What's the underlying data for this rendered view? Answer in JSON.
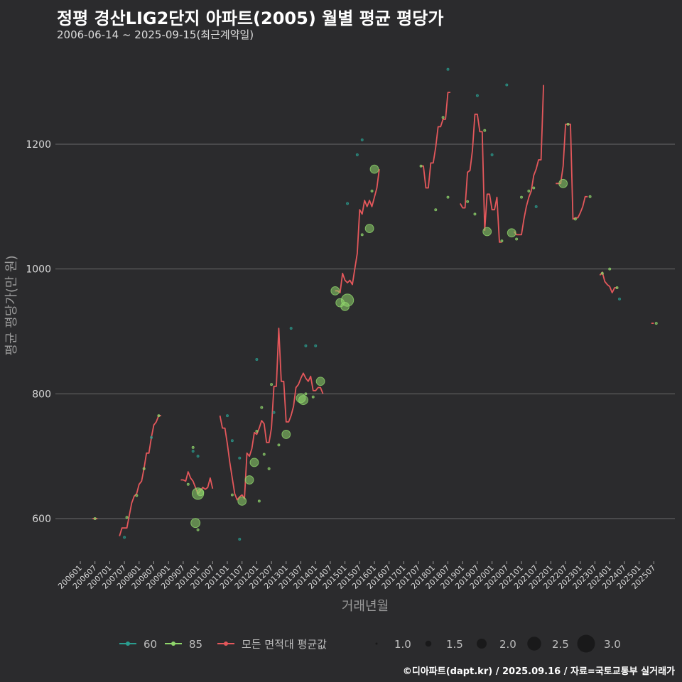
{
  "title": "정평 경산LIG2단지 아파트(2005) 월별 평균 평당가",
  "subtitle": "2006-06-14 ~ 2025-09-15(최근계약일)",
  "credit": "©디아파트(dapt.kr) / 2025.09.16 / 자료=국토교통부 실거래가",
  "colors": {
    "background": "#2b2b2d",
    "grid": "#6a6a6a",
    "series_60": "#2a9d8f",
    "series_85": "#8fd66b",
    "avg_line": "#e4575b"
  },
  "chart_data": {
    "type": "line+scatter",
    "xlabel": "거래년월",
    "ylabel": "평균 평당가(만 원)",
    "ylim": [
      534,
      1340
    ],
    "yticks": [
      600,
      800,
      1000,
      1200
    ],
    "x_start": "2006-01",
    "x_end": "2025-12",
    "xticks": [
      "200601",
      "200607",
      "200701",
      "200707",
      "200801",
      "200807",
      "200901",
      "200907",
      "201001",
      "201007",
      "201101",
      "201107",
      "201201",
      "201207",
      "201301",
      "201307",
      "201401",
      "201407",
      "201501",
      "201507",
      "201601",
      "201607",
      "201701",
      "201707",
      "201801",
      "201807",
      "201901",
      "201907",
      "202001",
      "202007",
      "202101",
      "202107",
      "202201",
      "202207",
      "202301",
      "202307",
      "202401",
      "202407",
      "202501",
      "202507"
    ],
    "legend": {
      "series": [
        {
          "label": "60",
          "color": "#2a9d8f"
        },
        {
          "label": "85",
          "color": "#8fd66b"
        },
        {
          "label": "모든 면적대 평균값",
          "color": "#e4575b"
        }
      ],
      "sizes": [
        {
          "label": "1.0",
          "size": 1.0
        },
        {
          "label": "1.5",
          "size": 1.5
        },
        {
          "label": "2.0",
          "size": 2.0
        },
        {
          "label": "2.5",
          "size": 2.5
        },
        {
          "label": "3.0",
          "size": 3.0
        }
      ]
    },
    "avg_line_segments": [
      [
        [
          "2006-06",
          600
        ],
        [
          "2006-08",
          600
        ]
      ],
      [
        [
          "2007-05",
          572
        ],
        [
          "2007-06",
          585
        ],
        [
          "2007-07",
          585
        ],
        [
          "2007-08",
          585
        ],
        [
          "2007-09",
          605
        ],
        [
          "2007-10",
          625
        ],
        [
          "2007-11",
          636
        ],
        [
          "2007-12",
          640
        ],
        [
          "2008-01",
          655
        ],
        [
          "2008-02",
          660
        ],
        [
          "2008-03",
          680
        ],
        [
          "2008-04",
          705
        ],
        [
          "2008-05",
          705
        ],
        [
          "2008-06",
          730
        ],
        [
          "2008-07",
          750
        ],
        [
          "2008-08",
          755
        ],
        [
          "2008-09",
          765
        ],
        [
          "2008-10",
          765
        ]
      ],
      [
        [
          "2009-06",
          662
        ],
        [
          "2009-07",
          662
        ],
        [
          "2009-08",
          660
        ],
        [
          "2009-09",
          675
        ],
        [
          "2009-10",
          665
        ],
        [
          "2009-11",
          660
        ],
        [
          "2009-12",
          650
        ],
        [
          "2010-01",
          640
        ],
        [
          "2010-02",
          645
        ],
        [
          "2010-03",
          650
        ],
        [
          "2010-04",
          647
        ],
        [
          "2010-05",
          650
        ],
        [
          "2010-06",
          665
        ],
        [
          "2010-07",
          648
        ]
      ],
      [
        [
          "2010-10",
          765
        ],
        [
          "2010-11",
          745
        ],
        [
          "2010-12",
          745
        ],
        [
          "2011-01",
          720
        ],
        [
          "2011-02",
          690
        ],
        [
          "2011-03",
          665
        ],
        [
          "2011-04",
          640
        ],
        [
          "2011-05",
          630
        ],
        [
          "2011-06",
          635
        ],
        [
          "2011-07",
          638
        ],
        [
          "2011-08",
          632
        ],
        [
          "2011-09",
          705
        ],
        [
          "2011-10",
          700
        ],
        [
          "2011-11",
          712
        ],
        [
          "2011-12",
          738
        ],
        [
          "2012-01",
          735
        ],
        [
          "2012-02",
          745
        ],
        [
          "2012-03",
          757
        ],
        [
          "2012-04",
          752
        ],
        [
          "2012-05",
          722
        ],
        [
          "2012-06",
          722
        ],
        [
          "2012-07",
          745
        ],
        [
          "2012-08",
          812
        ],
        [
          "2012-09",
          812
        ],
        [
          "2012-10",
          905
        ],
        [
          "2012-11",
          820
        ],
        [
          "2012-12",
          820
        ],
        [
          "2013-01",
          755
        ],
        [
          "2013-02",
          755
        ],
        [
          "2013-03",
          765
        ],
        [
          "2013-04",
          780
        ],
        [
          "2013-05",
          810
        ],
        [
          "2013-06",
          815
        ],
        [
          "2013-07",
          825
        ],
        [
          "2013-08",
          833
        ],
        [
          "2013-09",
          825
        ],
        [
          "2013-10",
          820
        ],
        [
          "2013-11",
          828
        ],
        [
          "2013-12",
          805
        ],
        [
          "2014-01",
          805
        ],
        [
          "2014-02",
          810
        ],
        [
          "2014-03",
          810
        ],
        [
          "2014-04",
          800
        ]
      ],
      [
        [
          "2014-09",
          965
        ],
        [
          "2014-10",
          965
        ],
        [
          "2014-11",
          962
        ],
        [
          "2014-12",
          993
        ],
        [
          "2015-01",
          982
        ],
        [
          "2015-02",
          978
        ],
        [
          "2015-03",
          982
        ],
        [
          "2015-04",
          975
        ],
        [
          "2015-05",
          1000
        ],
        [
          "2015-06",
          1025
        ],
        [
          "2015-07",
          1095
        ],
        [
          "2015-08",
          1088
        ],
        [
          "2015-09",
          1110
        ],
        [
          "2015-10",
          1100
        ],
        [
          "2015-11",
          1110
        ],
        [
          "2015-12",
          1100
        ],
        [
          "2016-01",
          1115
        ],
        [
          "2016-02",
          1130
        ],
        [
          "2016-03",
          1160
        ]
      ],
      [
        [
          "2017-08",
          1165
        ],
        [
          "2017-09",
          1165
        ],
        [
          "2017-10",
          1130
        ],
        [
          "2017-11",
          1130
        ],
        [
          "2017-12",
          1170
        ],
        [
          "2018-01",
          1170
        ],
        [
          "2018-02",
          1195
        ],
        [
          "2018-03",
          1228
        ],
        [
          "2018-04",
          1228
        ],
        [
          "2018-05",
          1240
        ],
        [
          "2018-06",
          1240
        ],
        [
          "2018-07",
          1283
        ],
        [
          "2018-08",
          1283
        ]
      ],
      [
        [
          "2018-12",
          1105
        ],
        [
          "2018-13",
          1098
        ],
        [
          "2019-02",
          1098
        ],
        [
          "2019-03",
          1155
        ],
        [
          "2019-04",
          1158
        ],
        [
          "2019-05",
          1190
        ],
        [
          "2019-06",
          1248
        ],
        [
          "2019-07",
          1248
        ],
        [
          "2019-08",
          1220
        ],
        [
          "2019-09",
          1220
        ],
        [
          "2019-10",
          1062
        ],
        [
          "2019-11",
          1120
        ],
        [
          "2019-12",
          1120
        ],
        [
          "2020-01",
          1095
        ],
        [
          "2020-02",
          1095
        ],
        [
          "2020-03",
          1115
        ],
        [
          "2020-04",
          1043
        ],
        [
          "2020-05",
          1043
        ]
      ],
      [
        [
          "2020-10",
          1060
        ],
        [
          "2020-11",
          1055
        ],
        [
          "2020-12",
          1055
        ],
        [
          "2021-01",
          1055
        ],
        [
          "2021-02",
          1080
        ],
        [
          "2021-03",
          1100
        ],
        [
          "2021-04",
          1115
        ],
        [
          "2021-05",
          1125
        ],
        [
          "2021-06",
          1150
        ],
        [
          "2021-07",
          1160
        ],
        [
          "2021-08",
          1175
        ],
        [
          "2021-09",
          1175
        ],
        [
          "2021-10",
          1295
        ]
      ],
      [
        [
          "2022-03",
          1137
        ],
        [
          "2022-04",
          1137
        ],
        [
          "2022-05",
          1137
        ],
        [
          "2022-06",
          1165
        ],
        [
          "2022-07",
          1232
        ],
        [
          "2022-08",
          1232
        ],
        [
          "2022-09",
          1232
        ],
        [
          "2022-10",
          1080
        ],
        [
          "2022-11",
          1082
        ],
        [
          "2022-12",
          1082
        ],
        [
          "2023-01",
          1090
        ],
        [
          "2023-02",
          1100
        ],
        [
          "2023-03",
          1116
        ],
        [
          "2023-04",
          1116
        ]
      ],
      [
        [
          "2023-09",
          990
        ],
        [
          "2023-10",
          995
        ],
        [
          "2023-11",
          980
        ],
        [
          "2023-12",
          975
        ],
        [
          "2024-01",
          972
        ],
        [
          "2024-02",
          962
        ],
        [
          "2024-03",
          970
        ],
        [
          "2024-04",
          970
        ]
      ],
      [
        [
          "2025-06",
          913
        ],
        [
          "2025-07",
          913
        ]
      ]
    ],
    "points_60": [
      [
        "2007-07",
        570,
        1
      ],
      [
        "2008-06",
        730,
        1
      ],
      [
        "2009-11",
        708,
        1
      ],
      [
        "2010-01",
        700,
        1
      ],
      [
        "2011-01",
        765,
        1
      ],
      [
        "2011-03",
        725,
        1
      ],
      [
        "2011-06",
        697,
        1
      ],
      [
        "2011-06",
        567,
        1
      ],
      [
        "2012-01",
        855,
        1
      ],
      [
        "2012-08",
        770,
        1
      ],
      [
        "2013-03",
        905,
        1
      ],
      [
        "2013-09",
        877,
        1
      ],
      [
        "2014-01",
        877,
        1
      ],
      [
        "2015-02",
        1105,
        1
      ],
      [
        "2015-06",
        1183,
        1
      ],
      [
        "2015-08",
        1207,
        1
      ],
      [
        "2018-07",
        1320,
        1
      ],
      [
        "2019-07",
        1278,
        1
      ],
      [
        "2020-01",
        1183,
        1
      ],
      [
        "2020-07",
        1295,
        1
      ],
      [
        "2021-07",
        1100,
        1
      ],
      [
        "2024-05",
        952,
        1
      ]
    ],
    "points_85": [
      [
        "2006-07",
        600,
        1
      ],
      [
        "2007-08",
        602,
        1
      ],
      [
        "2007-12",
        637,
        1
      ],
      [
        "2008-03",
        680,
        1
      ],
      [
        "2008-09",
        765,
        1
      ],
      [
        "2009-09",
        655,
        1
      ],
      [
        "2009-11",
        714,
        1
      ],
      [
        "2009-12",
        593,
        1.9
      ],
      [
        "2010-01",
        582,
        1
      ],
      [
        "2010-01",
        640,
        2.2
      ],
      [
        "2010-02",
        642,
        1.6
      ],
      [
        "2011-03",
        638,
        1
      ],
      [
        "2011-07",
        628,
        1.8
      ],
      [
        "2011-10",
        662,
        1.8
      ],
      [
        "2011-12",
        690,
        1.8
      ],
      [
        "2012-01",
        740,
        1
      ],
      [
        "2012-02",
        628,
        1
      ],
      [
        "2012-03",
        778,
        1
      ],
      [
        "2012-04",
        703,
        1
      ],
      [
        "2012-06",
        680,
        1
      ],
      [
        "2012-07",
        815,
        1
      ],
      [
        "2012-10",
        718,
        1
      ],
      [
        "2013-01",
        735,
        1.8
      ],
      [
        "2013-07",
        793,
        1.9
      ],
      [
        "2013-08",
        790,
        1.9
      ],
      [
        "2013-09",
        800,
        1
      ],
      [
        "2013-12",
        795,
        1
      ],
      [
        "2014-03",
        820,
        1.8
      ],
      [
        "2014-09",
        965,
        1.8
      ],
      [
        "2014-11",
        946,
        1.8
      ],
      [
        "2015-01",
        940,
        1.8
      ],
      [
        "2015-02",
        950,
        2.3
      ],
      [
        "2015-08",
        1055,
        1
      ],
      [
        "2015-11",
        1065,
        1.8
      ],
      [
        "2015-12",
        1125,
        1
      ],
      [
        "2016-01",
        1160,
        1.8
      ],
      [
        "2017-08",
        1165,
        1
      ],
      [
        "2018-02",
        1095,
        1
      ],
      [
        "2018-05",
        1243,
        1
      ],
      [
        "2018-07",
        1115,
        1
      ],
      [
        "2019-03",
        1108,
        1
      ],
      [
        "2019-06",
        1088,
        1
      ],
      [
        "2019-10",
        1222,
        1
      ],
      [
        "2019-11",
        1060,
        1.8
      ],
      [
        "2020-05",
        1045,
        1
      ],
      [
        "2020-09",
        1058,
        1.8
      ],
      [
        "2020-11",
        1048,
        1
      ],
      [
        "2021-01",
        1115,
        1
      ],
      [
        "2021-04",
        1125,
        1
      ],
      [
        "2021-06",
        1130,
        1
      ],
      [
        "2022-08",
        1232,
        1
      ],
      [
        "2022-06",
        1137,
        1.8
      ],
      [
        "2022-11",
        1080,
        1
      ],
      [
        "2023-05",
        1116,
        1
      ],
      [
        "2023-10",
        993,
        1
      ],
      [
        "2024-01",
        1000,
        1
      ],
      [
        "2024-04",
        970,
        1
      ],
      [
        "2025-08",
        913,
        1
      ]
    ]
  }
}
